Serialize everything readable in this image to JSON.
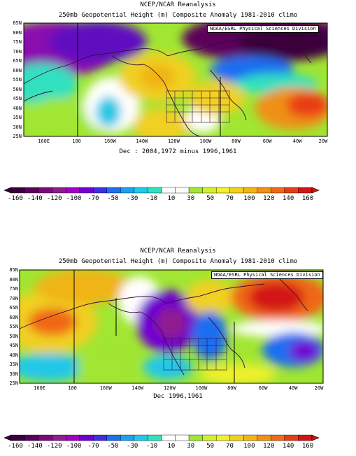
{
  "colors": {
    "scale": [
      "#3b003b",
      "#5c005c",
      "#7a0a7a",
      "#8f1c8f",
      "#a000c8",
      "#7000d0",
      "#3c30e0",
      "#1e6ef0",
      "#1ea0f0",
      "#20c8e8",
      "#30e0c0",
      "#ffffff",
      "#ffffff",
      "#a0e632",
      "#d2f030",
      "#f0f02c",
      "#f0d020",
      "#f0b418",
      "#f09018",
      "#f06818",
      "#e83c14",
      "#d41414"
    ],
    "line": "#3a0a3a"
  },
  "panels": [
    {
      "title_line1": "NCEP/NCAR Reanalysis",
      "title_line2": "250mb Geopotential Height (m) Composite Anomaly 1981-2010 climo",
      "credit": "NOAA/ESRL Physical Sciences Division",
      "caption": "Dec : 2004,1972 minus 1996,1961",
      "map_type": "composite anomaly"
    },
    {
      "title_line1": "NCEP/NCAR Reanalysis",
      "title_line2": "250mb Geopotential Height (m) Composite Anomaly 1981-2010 climo",
      "credit": "NOAA/ESRL Physical Sciences Division",
      "caption": "Dec 1996,1961",
      "map_type": "composite anomaly"
    }
  ],
  "axes": {
    "lat_labels": [
      "85N",
      "80N",
      "75N",
      "70N",
      "65N",
      "60N",
      "55N",
      "50N",
      "45N",
      "40N",
      "35N",
      "30N",
      "25N"
    ],
    "lon_labels": [
      "160E",
      "180",
      "160W",
      "140W",
      "120W",
      "100W",
      "80W",
      "60W",
      "40W",
      "20W"
    ]
  },
  "colorbar": {
    "labels": [
      "-160",
      "-140",
      "-120",
      "-100",
      "-70",
      "-50",
      "-30",
      "-10",
      "10",
      "30",
      "50",
      "70",
      "100",
      "120",
      "140",
      "160"
    ]
  }
}
